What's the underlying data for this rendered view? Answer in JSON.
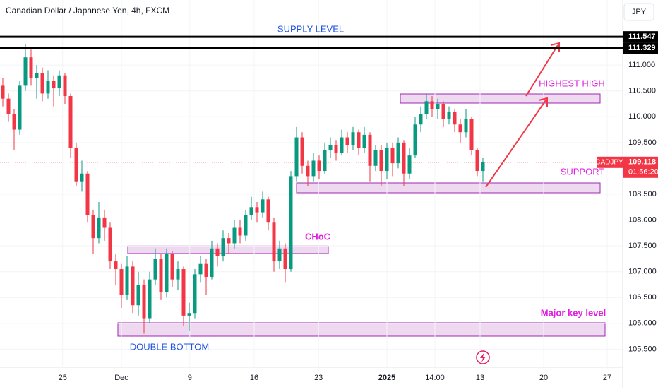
{
  "chart_data": {
    "type": "candlestick",
    "title": "Canadian Dollar / Japanese Yen, 4h, FXCM",
    "currency": "JPY",
    "symbol": "CADJPY",
    "current_price": {
      "value": 109.118,
      "label": "109.118"
    },
    "countdown": "01:56:20",
    "up_color": "#089981",
    "down_color": "#f23645",
    "levels": [
      {
        "value": 111.547,
        "label": "111.547"
      },
      {
        "value": 111.329,
        "label": "111.329"
      }
    ],
    "annotations": [
      "SUPPLY LEVEL",
      "HIGHEST HIGH",
      "SUPPORT",
      "CHoC",
      "Major key level",
      "DOUBLE BOTTOM"
    ],
    "xlim": [
      -0.5,
      109.75
    ],
    "xticks": [
      {
        "value": 10.6,
        "label": "25"
      },
      {
        "value": 21,
        "label": "Dec"
      },
      {
        "value": 33.1,
        "label": "9"
      },
      {
        "value": 44.5,
        "label": "16"
      },
      {
        "value": 55.9,
        "label": "23"
      },
      {
        "value": 68,
        "label": "2025"
      },
      {
        "value": 76.5,
        "label": "14:00"
      },
      {
        "value": 84.5,
        "label": "13"
      },
      {
        "value": 95.75,
        "label": "20"
      },
      {
        "value": 107,
        "label": "27"
      }
    ],
    "ylim": [
      105.15,
      112.26
    ],
    "yticks": [
      {
        "value": 105.5,
        "label": "105.500"
      },
      {
        "value": 106,
        "label": "106.000"
      },
      {
        "value": 106.5,
        "label": "106.500"
      },
      {
        "value": 107,
        "label": "107.000"
      },
      {
        "value": 107.5,
        "label": "107.500"
      },
      {
        "value": 108,
        "label": "108.000"
      },
      {
        "value": 108.5,
        "label": "108.500"
      },
      {
        "value": 109.5,
        "label": "109.500"
      },
      {
        "value": 110,
        "label": "110.000"
      },
      {
        "value": 110.5,
        "label": "110.500"
      },
      {
        "value": 111,
        "label": "111.000"
      }
    ],
    "open": [
      110.6,
      110.35,
      110.05,
      109.75,
      110.6,
      111.15,
      110.75,
      110.85,
      110.45,
      110.7,
      110.55,
      110.8,
      110.4,
      109.4,
      108.75,
      108.9,
      108.1,
      107.65,
      108.05,
      107.85,
      107.2,
      107.05,
      106.55,
      107.1,
      106.35,
      106.75,
      106.1,
      106.85,
      107.25,
      106.6,
      107.35,
      106.85,
      107.05,
      106.15,
      106.2,
      106.95,
      107.15,
      106.9,
      107.45,
      107.3,
      107.65,
      107.55,
      107.85,
      107.7,
      108.1,
      108.25,
      108.15,
      108.4,
      107.95,
      107.2,
      107.45,
      107.05,
      108.85,
      109.6,
      109.05,
      108.85,
      109.15,
      108.95,
      109.35,
      109.45,
      109.3,
      109.6,
      109.45,
      109.7,
      109.4,
      109.65,
      109.05,
      109.35,
      108.95,
      109.4,
      109.1,
      109.5,
      108.9,
      109.25,
      109.85,
      110.05,
      110.3,
      110.15,
      110.25,
      109.95,
      110.1,
      109.85,
      109.7,
      109.95,
      109.35,
      108.95
    ],
    "high": [
      110.75,
      110.45,
      110.15,
      110.7,
      111.4,
      111.3,
      111.0,
      110.95,
      110.9,
      110.8,
      110.9,
      110.85,
      110.45,
      109.5,
      109.15,
      108.95,
      108.2,
      108.35,
      108.2,
      107.95,
      107.35,
      107.15,
      107.3,
      107.2,
      107.0,
      106.85,
      107.0,
      107.45,
      107.35,
      107.45,
      107.4,
      107.2,
      107.1,
      106.4,
      107.05,
      107.3,
      107.25,
      107.6,
      107.55,
      107.8,
      107.75,
      108.0,
      108.0,
      108.2,
      108.45,
      108.35,
      108.55,
      108.45,
      108.05,
      107.6,
      107.55,
      108.95,
      109.8,
      109.7,
      109.15,
      109.3,
      109.25,
      109.5,
      109.6,
      109.55,
      109.75,
      109.7,
      109.8,
      109.75,
      109.8,
      109.7,
      109.45,
      109.45,
      109.5,
      109.5,
      109.6,
      109.55,
      109.4,
      110.0,
      110.2,
      110.45,
      110.4,
      110.35,
      110.3,
      110.2,
      110.15,
      109.95,
      110.15,
      110.0,
      109.4,
      109.2
    ],
    "low": [
      110.2,
      109.9,
      109.35,
      109.65,
      110.5,
      110.6,
      110.35,
      110.3,
      110.35,
      110.2,
      110.4,
      110.25,
      109.2,
      108.65,
      108.55,
      107.95,
      107.35,
      107.55,
      107.6,
      107.05,
      106.75,
      106.3,
      106.45,
      106.2,
      106.15,
      105.8,
      106.0,
      106.75,
      106.45,
      106.5,
      106.7,
      106.65,
      105.95,
      105.85,
      106.1,
      106.8,
      106.55,
      106.85,
      107.1,
      107.2,
      107.35,
      107.45,
      107.55,
      107.6,
      108.0,
      107.95,
      108.05,
      107.8,
      107.0,
      107.05,
      106.8,
      107.0,
      108.75,
      108.9,
      108.65,
      108.75,
      108.8,
      108.9,
      109.2,
      109.15,
      109.25,
      109.3,
      109.35,
      109.25,
      109.3,
      108.75,
      108.95,
      108.65,
      108.8,
      108.85,
      109.0,
      108.65,
      108.8,
      109.2,
      109.7,
      109.95,
      110.0,
      109.95,
      109.8,
      109.85,
      109.7,
      109.5,
      109.6,
      109.25,
      108.85,
      108.75
    ],
    "close": [
      110.35,
      110.05,
      109.75,
      110.6,
      111.15,
      110.75,
      110.85,
      110.45,
      110.7,
      110.55,
      110.8,
      110.4,
      109.4,
      108.75,
      108.9,
      108.1,
      107.65,
      108.05,
      107.85,
      107.2,
      107.05,
      106.55,
      107.1,
      106.35,
      106.75,
      106.1,
      106.85,
      107.25,
      106.6,
      107.35,
      106.85,
      107.05,
      106.15,
      106.2,
      106.95,
      107.15,
      106.9,
      107.45,
      107.3,
      107.65,
      107.55,
      107.85,
      107.7,
      108.1,
      108.25,
      108.15,
      108.4,
      107.95,
      107.2,
      107.45,
      107.05,
      108.85,
      109.6,
      109.05,
      108.85,
      109.15,
      108.95,
      109.35,
      109.45,
      109.3,
      109.6,
      109.45,
      109.7,
      109.4,
      109.65,
      109.05,
      109.35,
      108.95,
      109.4,
      109.1,
      109.5,
      108.9,
      109.25,
      109.85,
      110.05,
      110.3,
      110.15,
      110.25,
      109.95,
      110.1,
      109.85,
      109.7,
      109.95,
      109.35,
      108.95,
      109.12
    ]
  }
}
